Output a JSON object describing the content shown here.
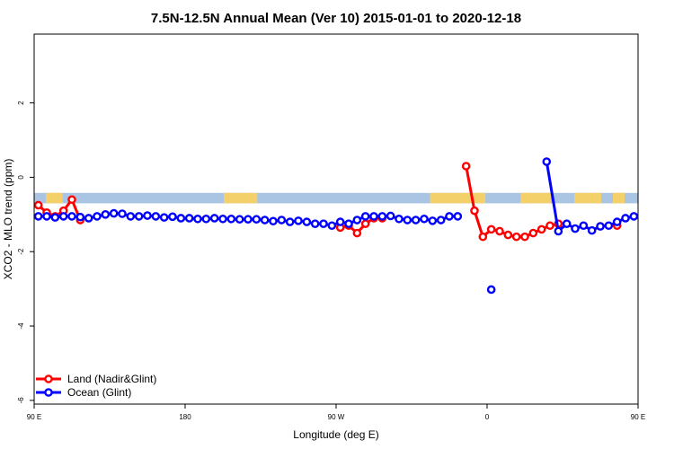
{
  "chart_data": {
    "type": "line",
    "title": "7.5N-12.5N Annual Mean (Ver 10)   2015-01-01 to 2020-12-18",
    "xlabel": "Longitude (deg E)",
    "ylabel": "XCO2 - MLO trend (ppm)",
    "xlim": [
      90,
      450
    ],
    "ylim": [
      -6.1,
      3.85
    ],
    "x_ticks": [
      {
        "value": 90,
        "label": "90 E"
      },
      {
        "value": 180,
        "label": "180"
      },
      {
        "value": 270,
        "label": "90 W"
      },
      {
        "value": 360,
        "label": "0"
      },
      {
        "value": 450,
        "label": "90 E"
      },
      {
        "value": 540,
        "label": "180"
      }
    ],
    "y_ticks": [
      {
        "value": 2,
        "label": "2"
      },
      {
        "value": 0,
        "label": "0"
      },
      {
        "value": -2,
        "label": "-2"
      },
      {
        "value": -4,
        "label": "-4"
      },
      {
        "value": -6,
        "label": "-6"
      }
    ],
    "x_tick_values": [
      90,
      180,
      270,
      360,
      450
    ],
    "grid": false,
    "legend_position": "bottom-left",
    "background_band": {
      "y_low": -0.7,
      "y_high": -0.42,
      "color": "#aac4e4"
    },
    "land_mask": {
      "color": "#f3d06a",
      "regions": [
        [
          97,
          107
        ],
        [
          203,
          223
        ],
        [
          326,
          359
        ],
        [
          380,
          398
        ],
        [
          412,
          428
        ],
        [
          435,
          442
        ],
        [
          451,
          457
        ]
      ]
    },
    "series": [
      {
        "name": "Land (Nadir&Glint)",
        "color": "#ff0000",
        "segments": [
          {
            "x": [
              92.5,
              97.5,
              102.5,
              107.5,
              112.5,
              117.5
            ],
            "y": [
              -0.75,
              -0.95,
              -1.05,
              -0.9,
              -0.6,
              -1.15
            ]
          },
          {
            "x": [
              272.5,
              277.5,
              282.5,
              287.5,
              292.5,
              297.5
            ],
            "y": [
              -1.35,
              -1.3,
              -1.5,
              -1.25,
              -1.1,
              -1.1
            ]
          },
          {
            "x": [
              347.5,
              352.5,
              357.5,
              362.5,
              367.5,
              372.5,
              377.5,
              382.5,
              387.5,
              392.5,
              397.5,
              402.5
            ],
            "y": [
              0.3,
              -0.9,
              -1.6,
              -1.4,
              -1.45,
              -1.55,
              -1.6,
              -1.6,
              -1.5,
              -1.4,
              -1.3,
              -1.25
            ]
          },
          {
            "x": [
              437.5
            ],
            "y": [
              -1.3
            ]
          },
          {
            "x": [
              452.5,
              457.5,
              462.5,
              467.5,
              472.5,
              477.5
            ],
            "y": [
              -0.75,
              -0.95,
              -0.9,
              -1.05,
              -0.6,
              -1.1
            ]
          }
        ]
      },
      {
        "name": "Ocean (Glint)",
        "color": "#0000ff",
        "segments": [
          {
            "x": [
              92.5,
              97.5,
              102.5,
              107.5,
              112.5,
              117.5,
              122.5,
              127.5,
              132.5,
              137.5,
              142.5,
              147.5,
              152.5,
              157.5,
              162.5,
              167.5,
              172.5,
              177.5,
              182.5,
              187.5,
              192.5,
              197.5,
              202.5,
              207.5,
              212.5,
              217.5,
              222.5,
              227.5,
              232.5,
              237.5,
              242.5,
              247.5,
              252.5,
              257.5,
              262.5,
              267.5,
              272.5,
              277.5,
              282.5,
              287.5,
              292.5,
              297.5,
              302.5,
              307.5,
              312.5,
              317.5,
              322.5,
              327.5,
              332.5,
              337.5,
              342.5
            ],
            "y": [
              -1.05,
              -1.05,
              -1.08,
              -1.05,
              -1.05,
              -1.07,
              -1.1,
              -1.05,
              -1.0,
              -0.97,
              -0.98,
              -1.05,
              -1.05,
              -1.03,
              -1.05,
              -1.08,
              -1.06,
              -1.1,
              -1.1,
              -1.12,
              -1.12,
              -1.1,
              -1.12,
              -1.12,
              -1.13,
              -1.13,
              -1.13,
              -1.15,
              -1.18,
              -1.15,
              -1.2,
              -1.17,
              -1.2,
              -1.25,
              -1.25,
              -1.3,
              -1.2,
              -1.25,
              -1.15,
              -1.05,
              -1.05,
              -1.05,
              -1.04,
              -1.12,
              -1.15,
              -1.15,
              -1.12,
              -1.17,
              -1.15,
              -1.05,
              -1.05
            ]
          },
          {
            "x": [
              362.5
            ],
            "y": [
              -3.02
            ]
          },
          {
            "x": [
              395.5,
              402.5,
              407.5,
              412.5,
              417.5,
              422.5,
              427.5,
              432.5,
              437.5,
              442.5,
              447.5,
              452.5,
              457.5,
              462.5,
              467.5,
              472.5,
              477.5,
              482.5,
              487.5,
              492.5,
              497.5,
              502.5,
              507.5,
              512.5,
              517.5,
              522.5,
              527.5,
              537.5
            ],
            "y": [
              0.42,
              -1.45,
              -1.25,
              -1.38,
              -1.3,
              -1.43,
              -1.32,
              -1.3,
              -1.2,
              -1.1,
              -1.05,
              -1.05,
              -1.1,
              -1.1,
              -1.05,
              -1.05,
              -1.05,
              -1.0,
              -1.0,
              -1.05,
              -1.05,
              -1.03,
              -1.05,
              -1.05,
              -1.07,
              -1.03,
              -1.1,
              -1.05
            ]
          }
        ]
      }
    ]
  }
}
